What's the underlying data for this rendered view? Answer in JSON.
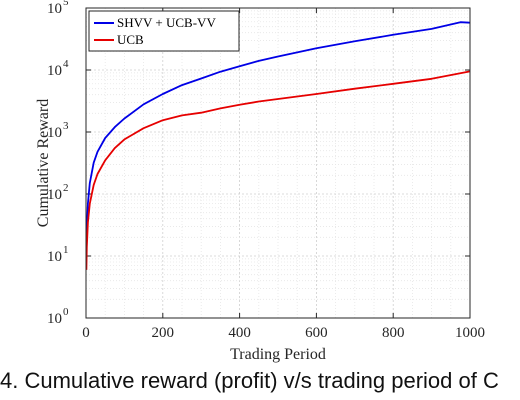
{
  "caption": "4. Cumulative reward (profit) v/s trading period of C",
  "chart_data": {
    "type": "line",
    "xlabel": "Trading Period",
    "ylabel": "Cumulative Reward",
    "xlim": [
      0,
      1000
    ],
    "ylim": [
      1,
      100000
    ],
    "yscale": "log",
    "grid": "major and minor",
    "legend_position": "top-left",
    "x_ticks": [
      "0",
      "200",
      "400",
      "600",
      "800",
      "1000"
    ],
    "y_ticks": [
      {
        "base": "10",
        "exp": "0"
      },
      {
        "base": "10",
        "exp": "1"
      },
      {
        "base": "10",
        "exp": "2"
      },
      {
        "base": "10",
        "exp": "3"
      },
      {
        "base": "10",
        "exp": "4"
      },
      {
        "base": "10",
        "exp": "5"
      }
    ],
    "series": [
      {
        "name": "SHVV + UCB-VV",
        "color": "#0000e6",
        "x": [
          1,
          2,
          5,
          10,
          20,
          30,
          50,
          75,
          100,
          150,
          200,
          250,
          300,
          350,
          400,
          450,
          500,
          600,
          700,
          800,
          900,
          975,
          1000
        ],
        "y": [
          10,
          25,
          70,
          150,
          320,
          480,
          800,
          1200,
          1650,
          2800,
          4100,
          5700,
          7300,
          9400,
          11500,
          14000,
          16500,
          22500,
          29000,
          37000,
          46000,
          59000,
          58000
        ]
      },
      {
        "name": "UCB",
        "color": "#e60000",
        "x": [
          1,
          2,
          5,
          10,
          20,
          30,
          50,
          75,
          100,
          150,
          200,
          250,
          300,
          350,
          400,
          450,
          500,
          600,
          700,
          800,
          900,
          1000
        ],
        "y": [
          6,
          14,
          35,
          70,
          140,
          210,
          350,
          550,
          760,
          1150,
          1550,
          1850,
          2050,
          2400,
          2750,
          3100,
          3400,
          4100,
          5000,
          6000,
          7200,
          9500
        ]
      }
    ]
  }
}
